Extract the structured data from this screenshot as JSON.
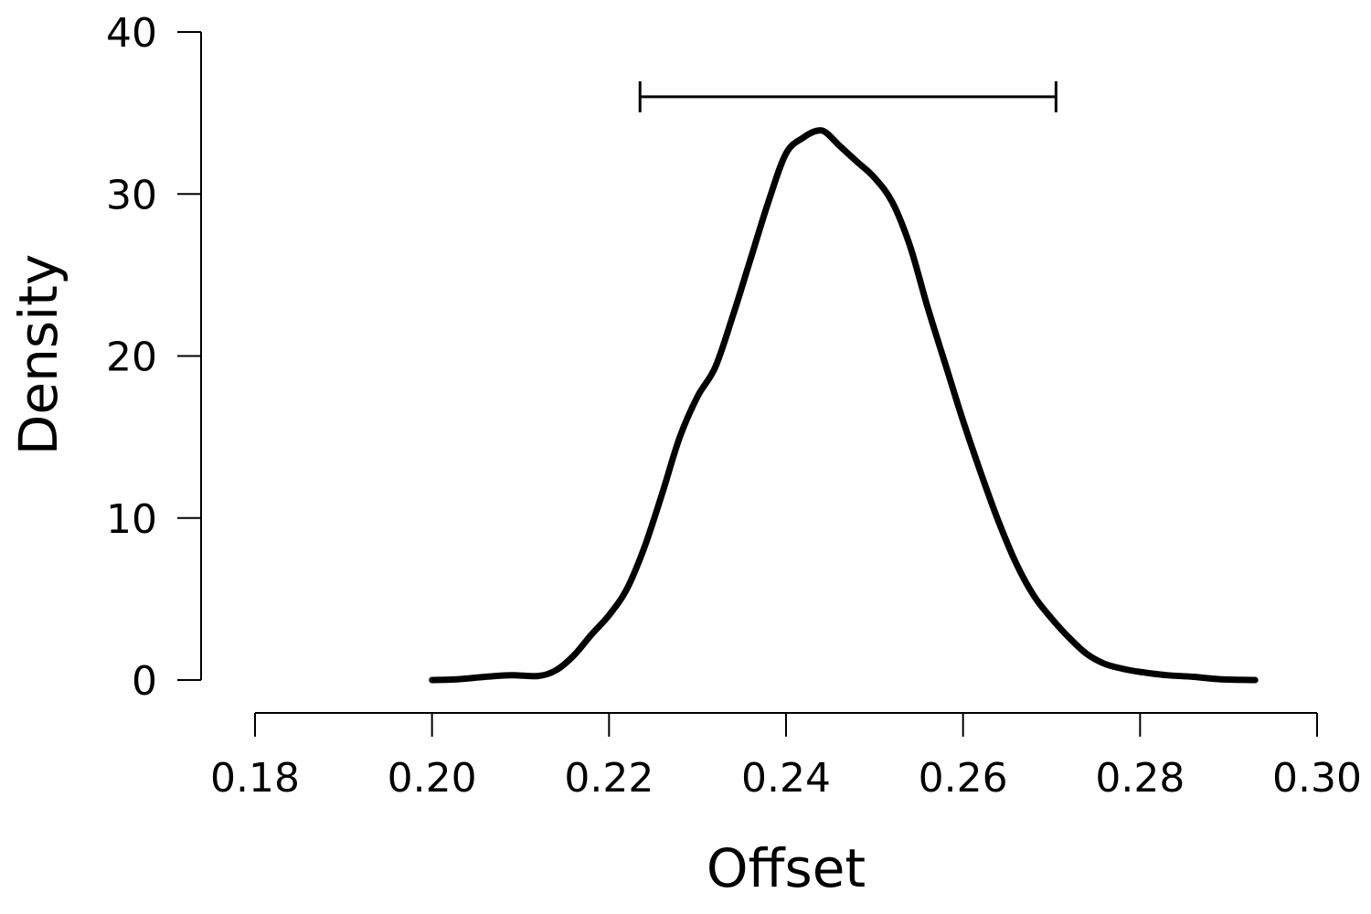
{
  "chart_data": {
    "type": "line",
    "title": "",
    "xlabel": "Offset",
    "ylabel": "Density",
    "xlim": [
      0.18,
      0.3
    ],
    "ylim": [
      0,
      40
    ],
    "xticks": [
      0.18,
      0.2,
      0.22,
      0.24,
      0.26,
      0.28,
      0.3
    ],
    "xtick_labels": [
      "0.18",
      "0.20",
      "0.22",
      "0.24",
      "0.26",
      "0.28",
      "0.30"
    ],
    "yticks": [
      0,
      10,
      20,
      30,
      40
    ],
    "ytick_labels": [
      "0",
      "10",
      "20",
      "30",
      "40"
    ],
    "grid": false,
    "series": [
      {
        "x": [
          0.2,
          0.203,
          0.206,
          0.209,
          0.212,
          0.214,
          0.216,
          0.218,
          0.22,
          0.222,
          0.224,
          0.226,
          0.228,
          0.23,
          0.232,
          0.234,
          0.236,
          0.238,
          0.24,
          0.242,
          0.2435,
          0.2445,
          0.246,
          0.248,
          0.25,
          0.252,
          0.254,
          0.256,
          0.258,
          0.26,
          0.262,
          0.264,
          0.266,
          0.268,
          0.27,
          0.272,
          0.274,
          0.276,
          0.278,
          0.28,
          0.283,
          0.286,
          0.289,
          0.293
        ],
        "y": [
          0.0,
          0.05,
          0.2,
          0.3,
          0.25,
          0.6,
          1.5,
          2.8,
          4.0,
          5.6,
          8.2,
          11.5,
          15.0,
          17.5,
          19.3,
          22.5,
          26.0,
          29.5,
          32.5,
          33.5,
          33.9,
          33.8,
          33.0,
          32.0,
          31.0,
          29.5,
          26.8,
          23.0,
          19.5,
          16.0,
          12.8,
          9.8,
          7.2,
          5.2,
          3.8,
          2.6,
          1.6,
          1.0,
          0.7,
          0.5,
          0.3,
          0.2,
          0.05,
          0.0
        ]
      }
    ],
    "interval": {
      "lower": 0.2235,
      "upper": 0.2705,
      "y": 36
    }
  }
}
